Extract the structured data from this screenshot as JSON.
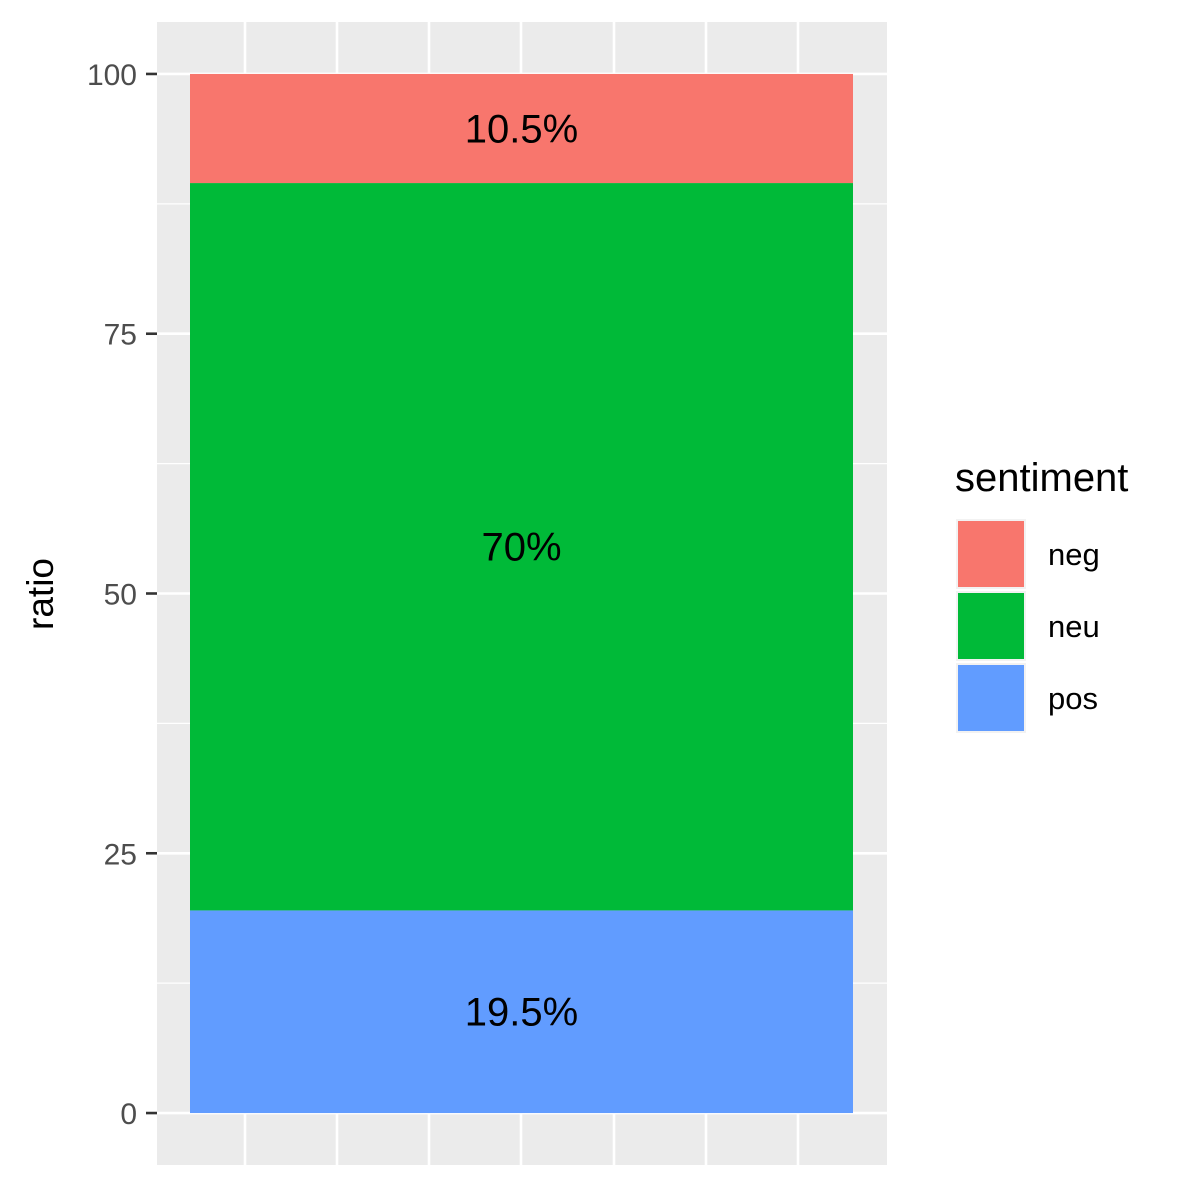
{
  "chart_data": {
    "type": "bar",
    "stacked": true,
    "title": "",
    "xlabel": "",
    "ylabel": "ratio",
    "ylim": [
      -5,
      105
    ],
    "yticks": [
      0,
      25,
      50,
      75,
      100
    ],
    "grid": true,
    "legend_position": "right",
    "legend_title": "sentiment",
    "series": [
      {
        "name": "pos",
        "value": 19.5,
        "label": "19.5%",
        "color": "#619CFF"
      },
      {
        "name": "neu",
        "value": 70,
        "label": "70%",
        "color": "#00BA38"
      },
      {
        "name": "neg",
        "value": 10.5,
        "label": "10.5%",
        "color": "#F8766D"
      }
    ],
    "legend_order": [
      "neg",
      "neu",
      "pos"
    ]
  }
}
